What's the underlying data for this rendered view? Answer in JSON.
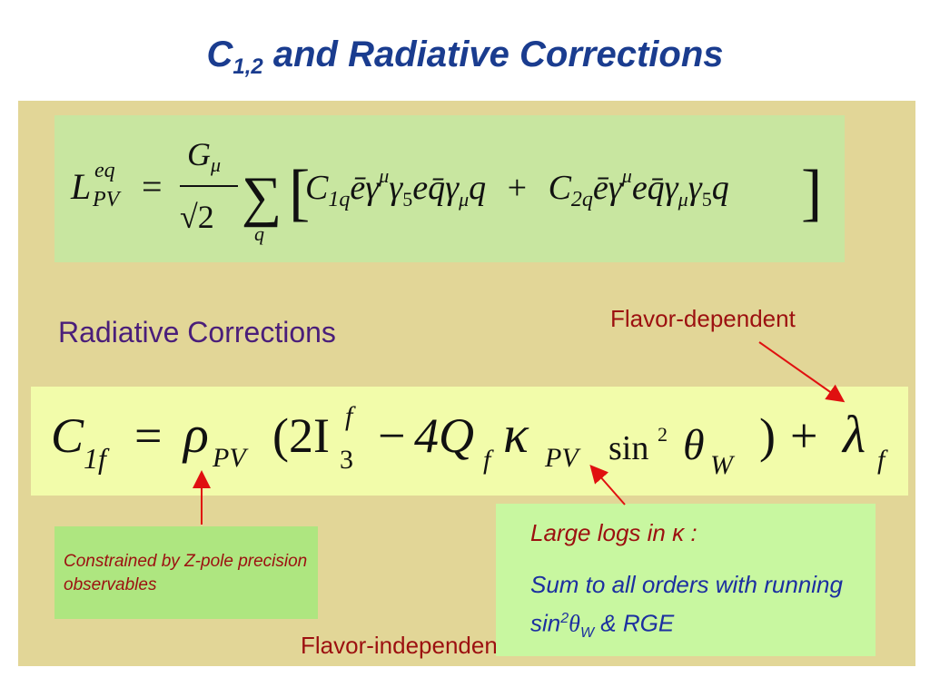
{
  "slide": {
    "title_prefix": "C",
    "title_sub": "1,2",
    "title_rest": " and Radiative Corrections"
  },
  "equation_lagrangian": {
    "lhs_symbol": "L",
    "lhs_superscript": "eq",
    "lhs_subscript": "PV",
    "equals": "=",
    "numerator": "G",
    "numerator_sub": "μ",
    "denominator": "√2",
    "sum_symbol": "∑",
    "sum_index": "q",
    "bracket_open": "[",
    "bracket_close": "]",
    "term1": "C",
    "term1_sub": "1q",
    "term1_body": "ēγ",
    "term1_sup": "μ",
    "term1_body2": "γ",
    "term1_sub2": "5",
    "term1_body3": "eq̄γ",
    "term1_sub3": "μ",
    "term1_body4": "q",
    "plus": "+",
    "term2": "C",
    "term2_sub": "2q",
    "term2_body": "ēγ",
    "term2_sup": "μ",
    "term2_body2": "eq̄γ",
    "term2_sub2": "μ",
    "term2_body3": "γ",
    "term2_sub3": "5",
    "term2_body4": "q"
  },
  "labels": {
    "radiative_corrections": "Radiative Corrections",
    "flavor_dependent": "Flavor-dependent",
    "flavor_independent": "Flavor-independent",
    "constrained_note": "Constrained by Z-pole precision observables",
    "large_logs": "Large logs in κ :",
    "sum_orders_prefix": "Sum to all orders with running sin",
    "sum_orders_sup": "2",
    "sum_orders_theta": "θ",
    "sum_orders_sub": "W",
    "sum_orders_suffix": " & RGE"
  },
  "equation_c1f": {
    "lhs": "C",
    "lhs_sub": "1f",
    "equals": "=",
    "rho": "ρ",
    "rho_sub": "PV",
    "paren_open": "(2I",
    "i_sup": "f",
    "i_sub": "3",
    "minus": "−",
    "four_q": "4Q",
    "q_sub": "f",
    "kappa": "κ",
    "kappa_sub": "PV",
    "sin": "sin",
    "sin_sup": "2",
    "theta": "θ",
    "theta_sub": "W",
    "paren_close": ")",
    "plus": "+",
    "lambda": "λ",
    "lambda_sub": "f"
  },
  "colors": {
    "title": "#1a3c8f",
    "panel": "#e2d697",
    "eq1_box": "#c8e6a0",
    "eq2_box": "#f2fcaa",
    "note_box": "#aee680",
    "logs_box": "#c8f7a0",
    "arrow": "#e01010"
  }
}
